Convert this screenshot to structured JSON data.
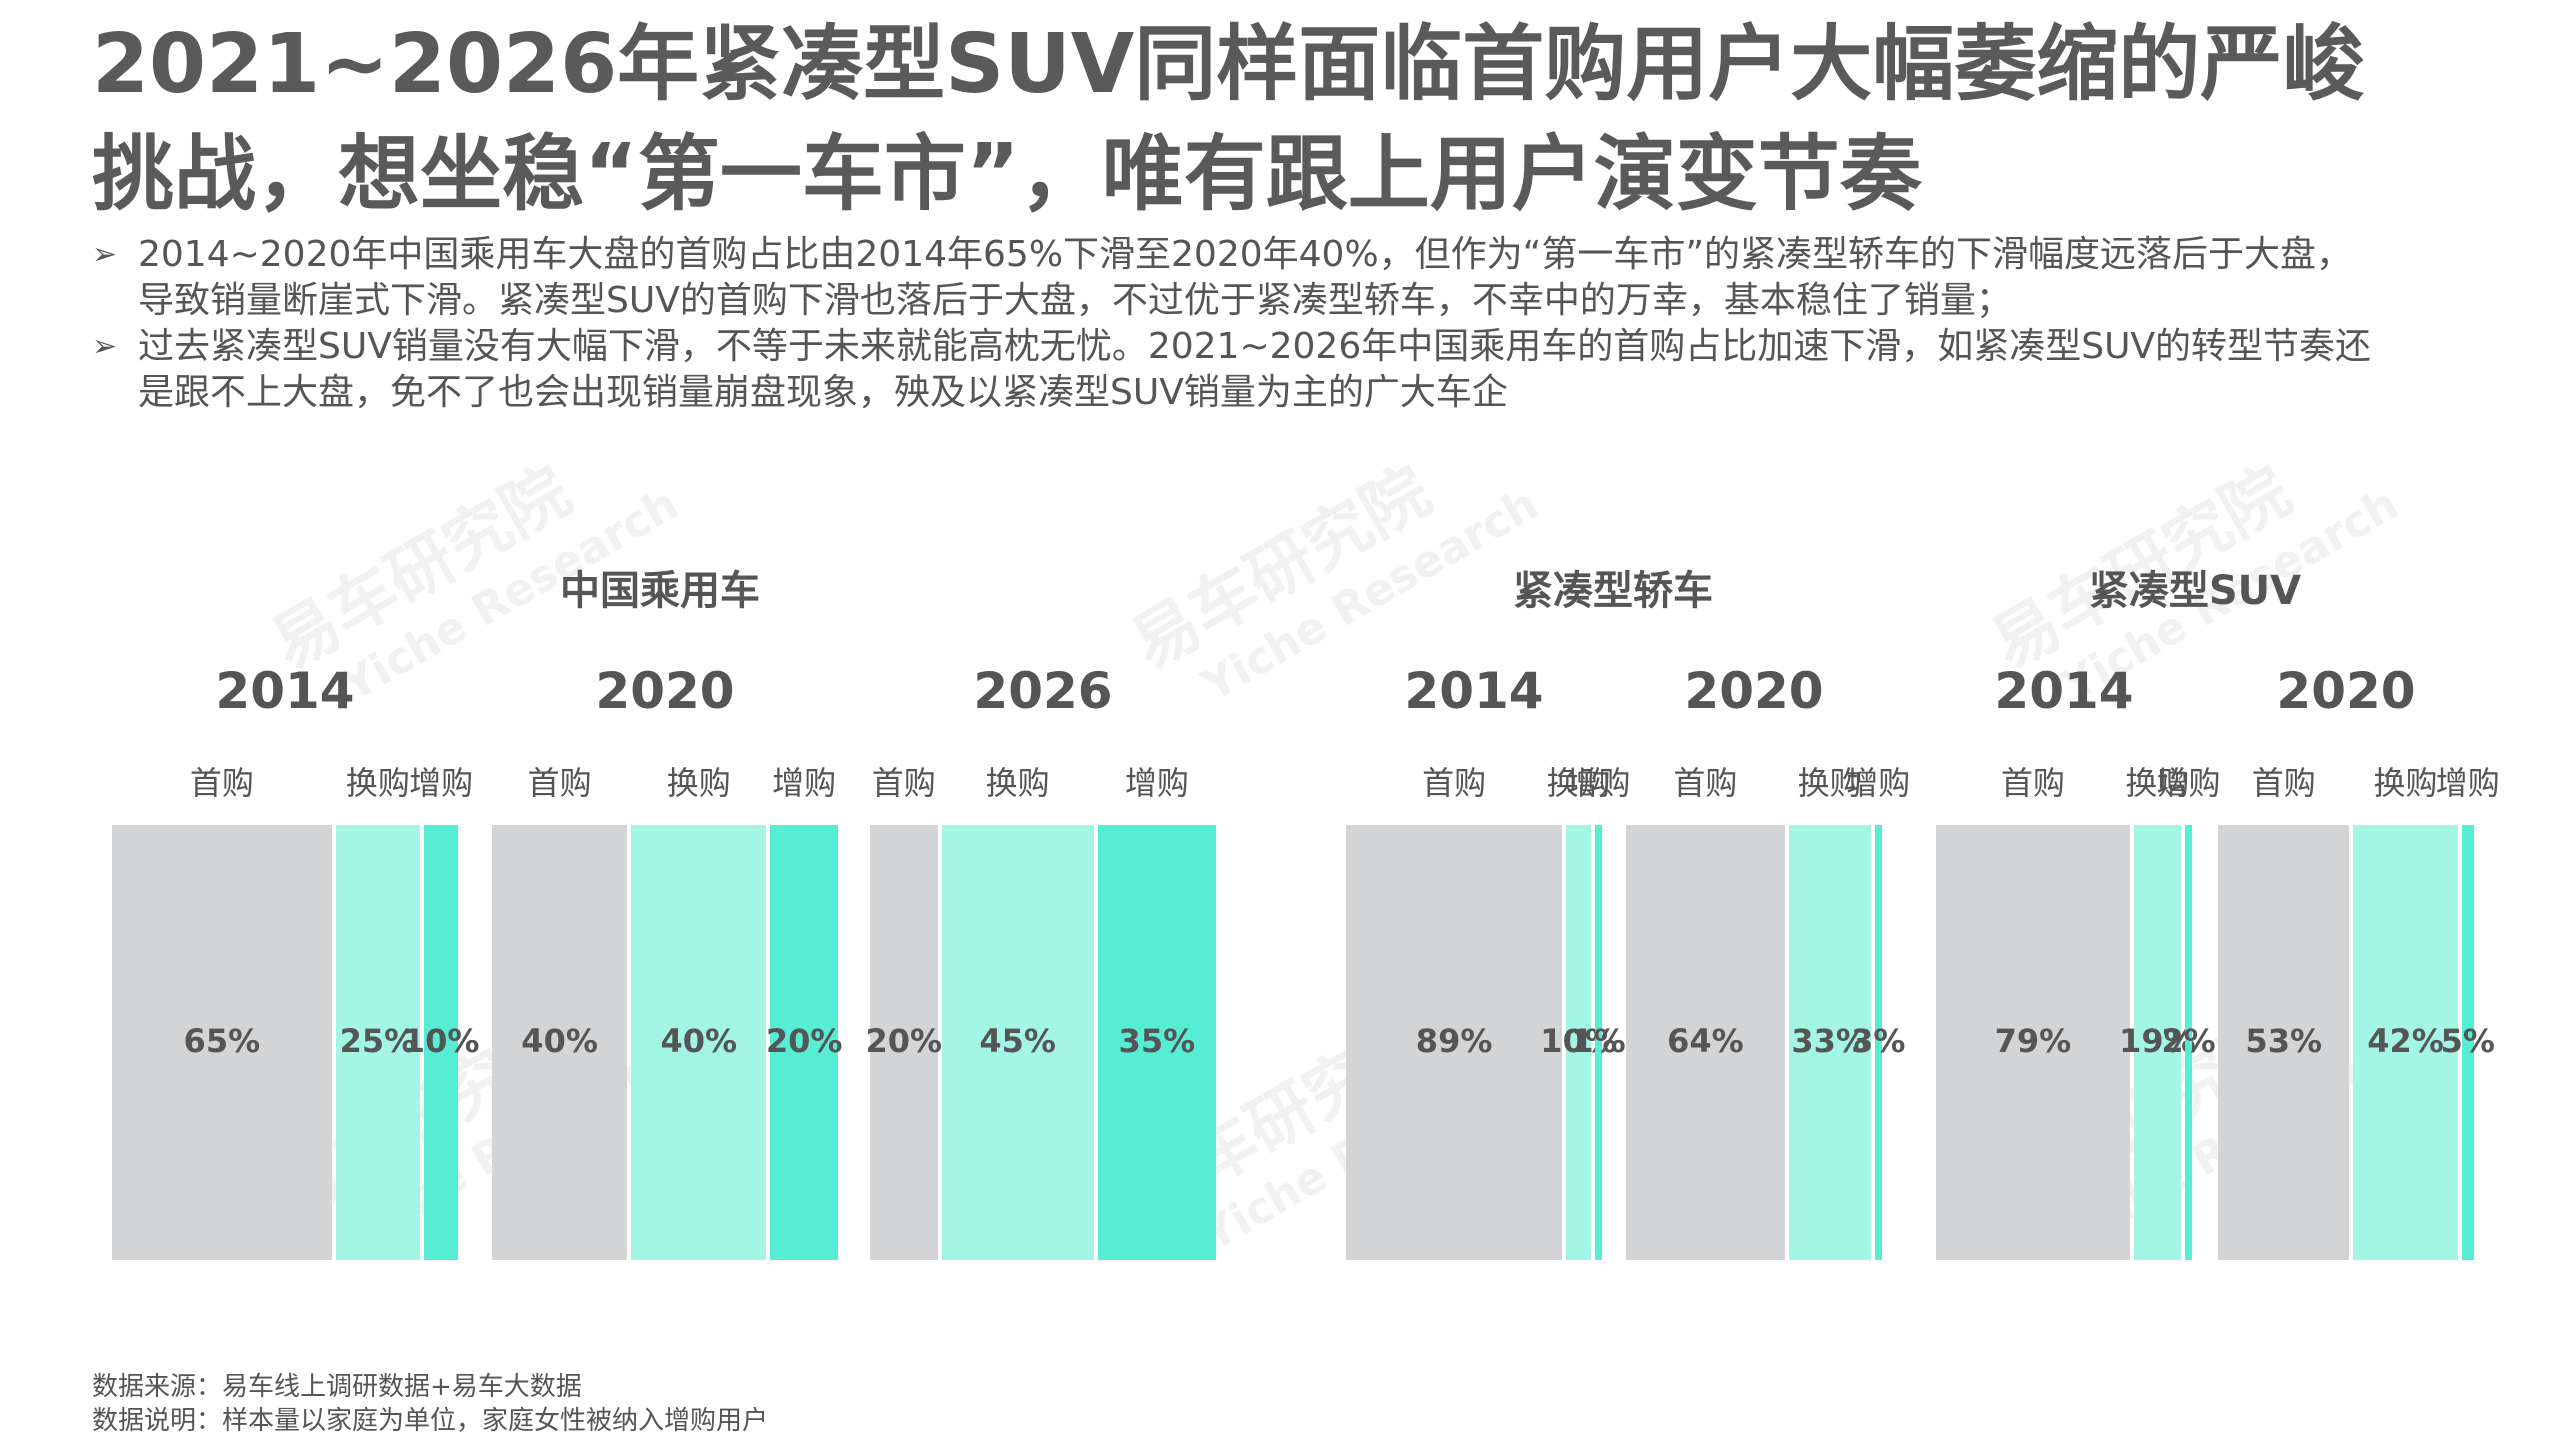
{
  "title": {
    "line1": "2021~2026年紧凑型SUV同样面临首购用户大幅萎缩的严峻",
    "line2": "挑战，想坐稳“第一车市”，唯有跟上用户演变节奏"
  },
  "bullets": [
    {
      "line1": "2014~2020年中国乘用车大盘的首购占比由2014年65%下滑至2020年40%，但作为“第一车市”的紧凑型轿车的下滑幅度远落后于大盘，",
      "line2": "导致销量断崖式下滑。紧凑型SUV的首购下滑也落后于大盘，不过优于紧凑型轿车，不幸中的万幸，基本稳住了销量；"
    },
    {
      "line1": "过去紧凑型SUV销量没有大幅下滑，不等于未来就能高枕无忧。2021~2026年中国乘用车的首购占比加速下滑，如紧凑型SUV的转型节奏还",
      "line2": "是跟不上大盘，免不了也会出现销量崩盘现象，殃及以紧凑型SUV销量为主的广大车企"
    }
  ],
  "watermark": {
    "cn": "易车研究院",
    "en": "Yiche Research"
  },
  "colors": {
    "first": "#d3d4d6",
    "replace": "#a3f5e6",
    "add": "#55eed5"
  },
  "chart_data": {
    "type": "bar",
    "segments": [
      "首购",
      "换购",
      "增购"
    ],
    "groups": [
      {
        "title": "中国乘用车",
        "panels": [
          {
            "year": "2014",
            "values": [
              65,
              25,
              10
            ],
            "labels": [
              "65%",
              "25%",
              "10%"
            ]
          },
          {
            "year": "2020",
            "values": [
              40,
              40,
              20
            ],
            "labels": [
              "40%",
              "40%",
              "20%"
            ]
          },
          {
            "year": "2026",
            "values": [
              20,
              45,
              35
            ],
            "labels": [
              "20%",
              "45%",
              "35%"
            ]
          }
        ]
      },
      {
        "title": "紧凑型轿车",
        "panels": [
          {
            "year": "2014",
            "values": [
              89,
              10,
              1
            ],
            "labels": [
              "89%",
              "10%",
              "1%"
            ]
          },
          {
            "year": "2020",
            "values": [
              64,
              33,
              3
            ],
            "labels": [
              "64%",
              "33%",
              "3%"
            ]
          }
        ]
      },
      {
        "title": "紧凑型SUV",
        "panels": [
          {
            "year": "2014",
            "values": [
              79,
              19,
              2
            ],
            "labels": [
              "79%",
              "19%",
              "2%"
            ]
          },
          {
            "year": "2020",
            "values": [
              53,
              42,
              5
            ],
            "labels": [
              "53%",
              "42%",
              "5%"
            ]
          }
        ]
      }
    ]
  },
  "footer": {
    "source": "数据来源：易车线上调研数据+易车大数据",
    "note": "数据说明：样本量以家庭为单位，家庭女性被纳入增购用户"
  }
}
